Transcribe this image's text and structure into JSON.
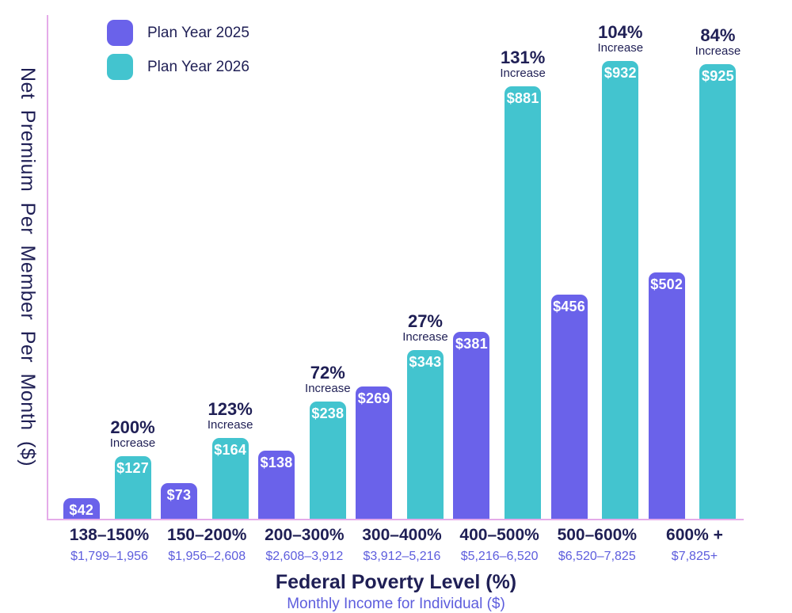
{
  "colors": {
    "plan_2025_purple": "#6a62ea",
    "plan_2026_teal": "#43c4cf",
    "navy_text": "#1f1f55",
    "purple_text": "#5d5ddd",
    "axis_line": "#e5abe9",
    "bar_value_text": "#ffffff"
  },
  "legend": {
    "items": [
      {
        "label": "Plan Year 2025",
        "color": "#6a62ea"
      },
      {
        "label": "Plan Year 2026",
        "color": "#43c4cf"
      }
    ]
  },
  "y_axis": {
    "title": "Net Premium Per Member Per Month ($)"
  },
  "x_axis": {
    "title": "Federal Poverty Level (%)",
    "subtitle": "Monthly Income for Individual ($)"
  },
  "chart_data": {
    "type": "bar",
    "title": "",
    "xlabel": "Federal Poverty Level (%)",
    "xlabel_secondary": "Monthly Income for Individual ($)",
    "ylabel": "Net Premium Per Member Per Month ($)",
    "ylim": [
      0,
      1000
    ],
    "grid": false,
    "legend_position": "top-left",
    "categories": [
      "138–150%",
      "150–200%",
      "200–300%",
      "300–400%",
      "400–500%",
      "500–600%",
      "600% +"
    ],
    "category_income": [
      "$1,799–1,956",
      "$1,956–2,608",
      "$2,608–3,912",
      "$3,912–5,216",
      "$5,216–6,520",
      "$6,520–7,825",
      "$7,825+"
    ],
    "series": [
      {
        "name": "Plan Year 2025",
        "color": "#6a62ea",
        "values": [
          42,
          73,
          138,
          269,
          381,
          456,
          502
        ]
      },
      {
        "name": "Plan Year 2026",
        "color": "#43c4cf",
        "values": [
          127,
          164,
          238,
          343,
          881,
          932,
          925
        ]
      }
    ],
    "increase_labels": [
      "200%",
      "123%",
      "72%",
      "27%",
      "131%",
      "104%",
      "84%"
    ],
    "increase_word": "Increase",
    "value_prefix": "$"
  }
}
